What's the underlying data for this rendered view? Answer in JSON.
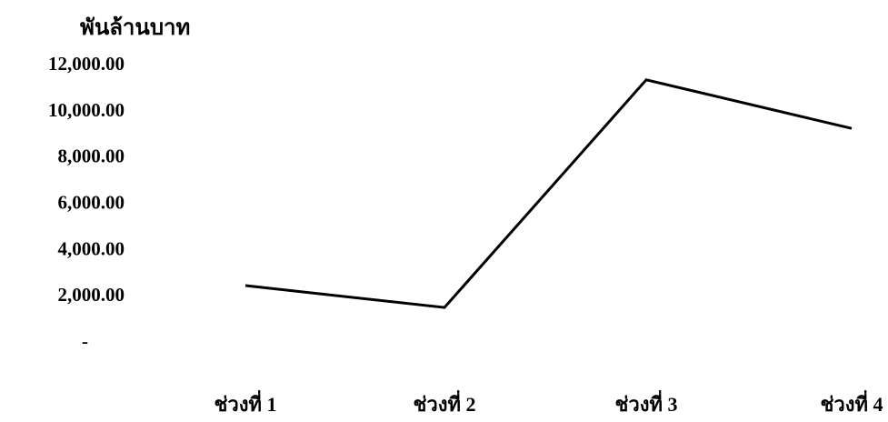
{
  "chart_data": {
    "type": "line",
    "title": "",
    "ylabel": "พันล้านบาท",
    "xlabel": "",
    "categories": [
      "ช่วงที่ 1",
      "ช่วงที่ 2",
      "ช่วงที่ 3",
      "ช่วงที่ 4"
    ],
    "series": [
      {
        "values": [
          2400,
          1450,
          11300,
          9200
        ],
        "color": "#000000"
      }
    ],
    "y_ticks": [
      {
        "value": 12000,
        "label": "12,000.00"
      },
      {
        "value": 10000,
        "label": "10,000.00"
      },
      {
        "value": 8000,
        "label": "8,000.00"
      },
      {
        "value": 6000,
        "label": "6,000.00"
      },
      {
        "value": 4000,
        "label": "4,000.00"
      },
      {
        "value": 2000,
        "label": "2,000.00"
      },
      {
        "value": 0,
        "label": "-"
      }
    ],
    "ylim": [
      0,
      12000
    ],
    "grid": false,
    "legend": "none"
  }
}
